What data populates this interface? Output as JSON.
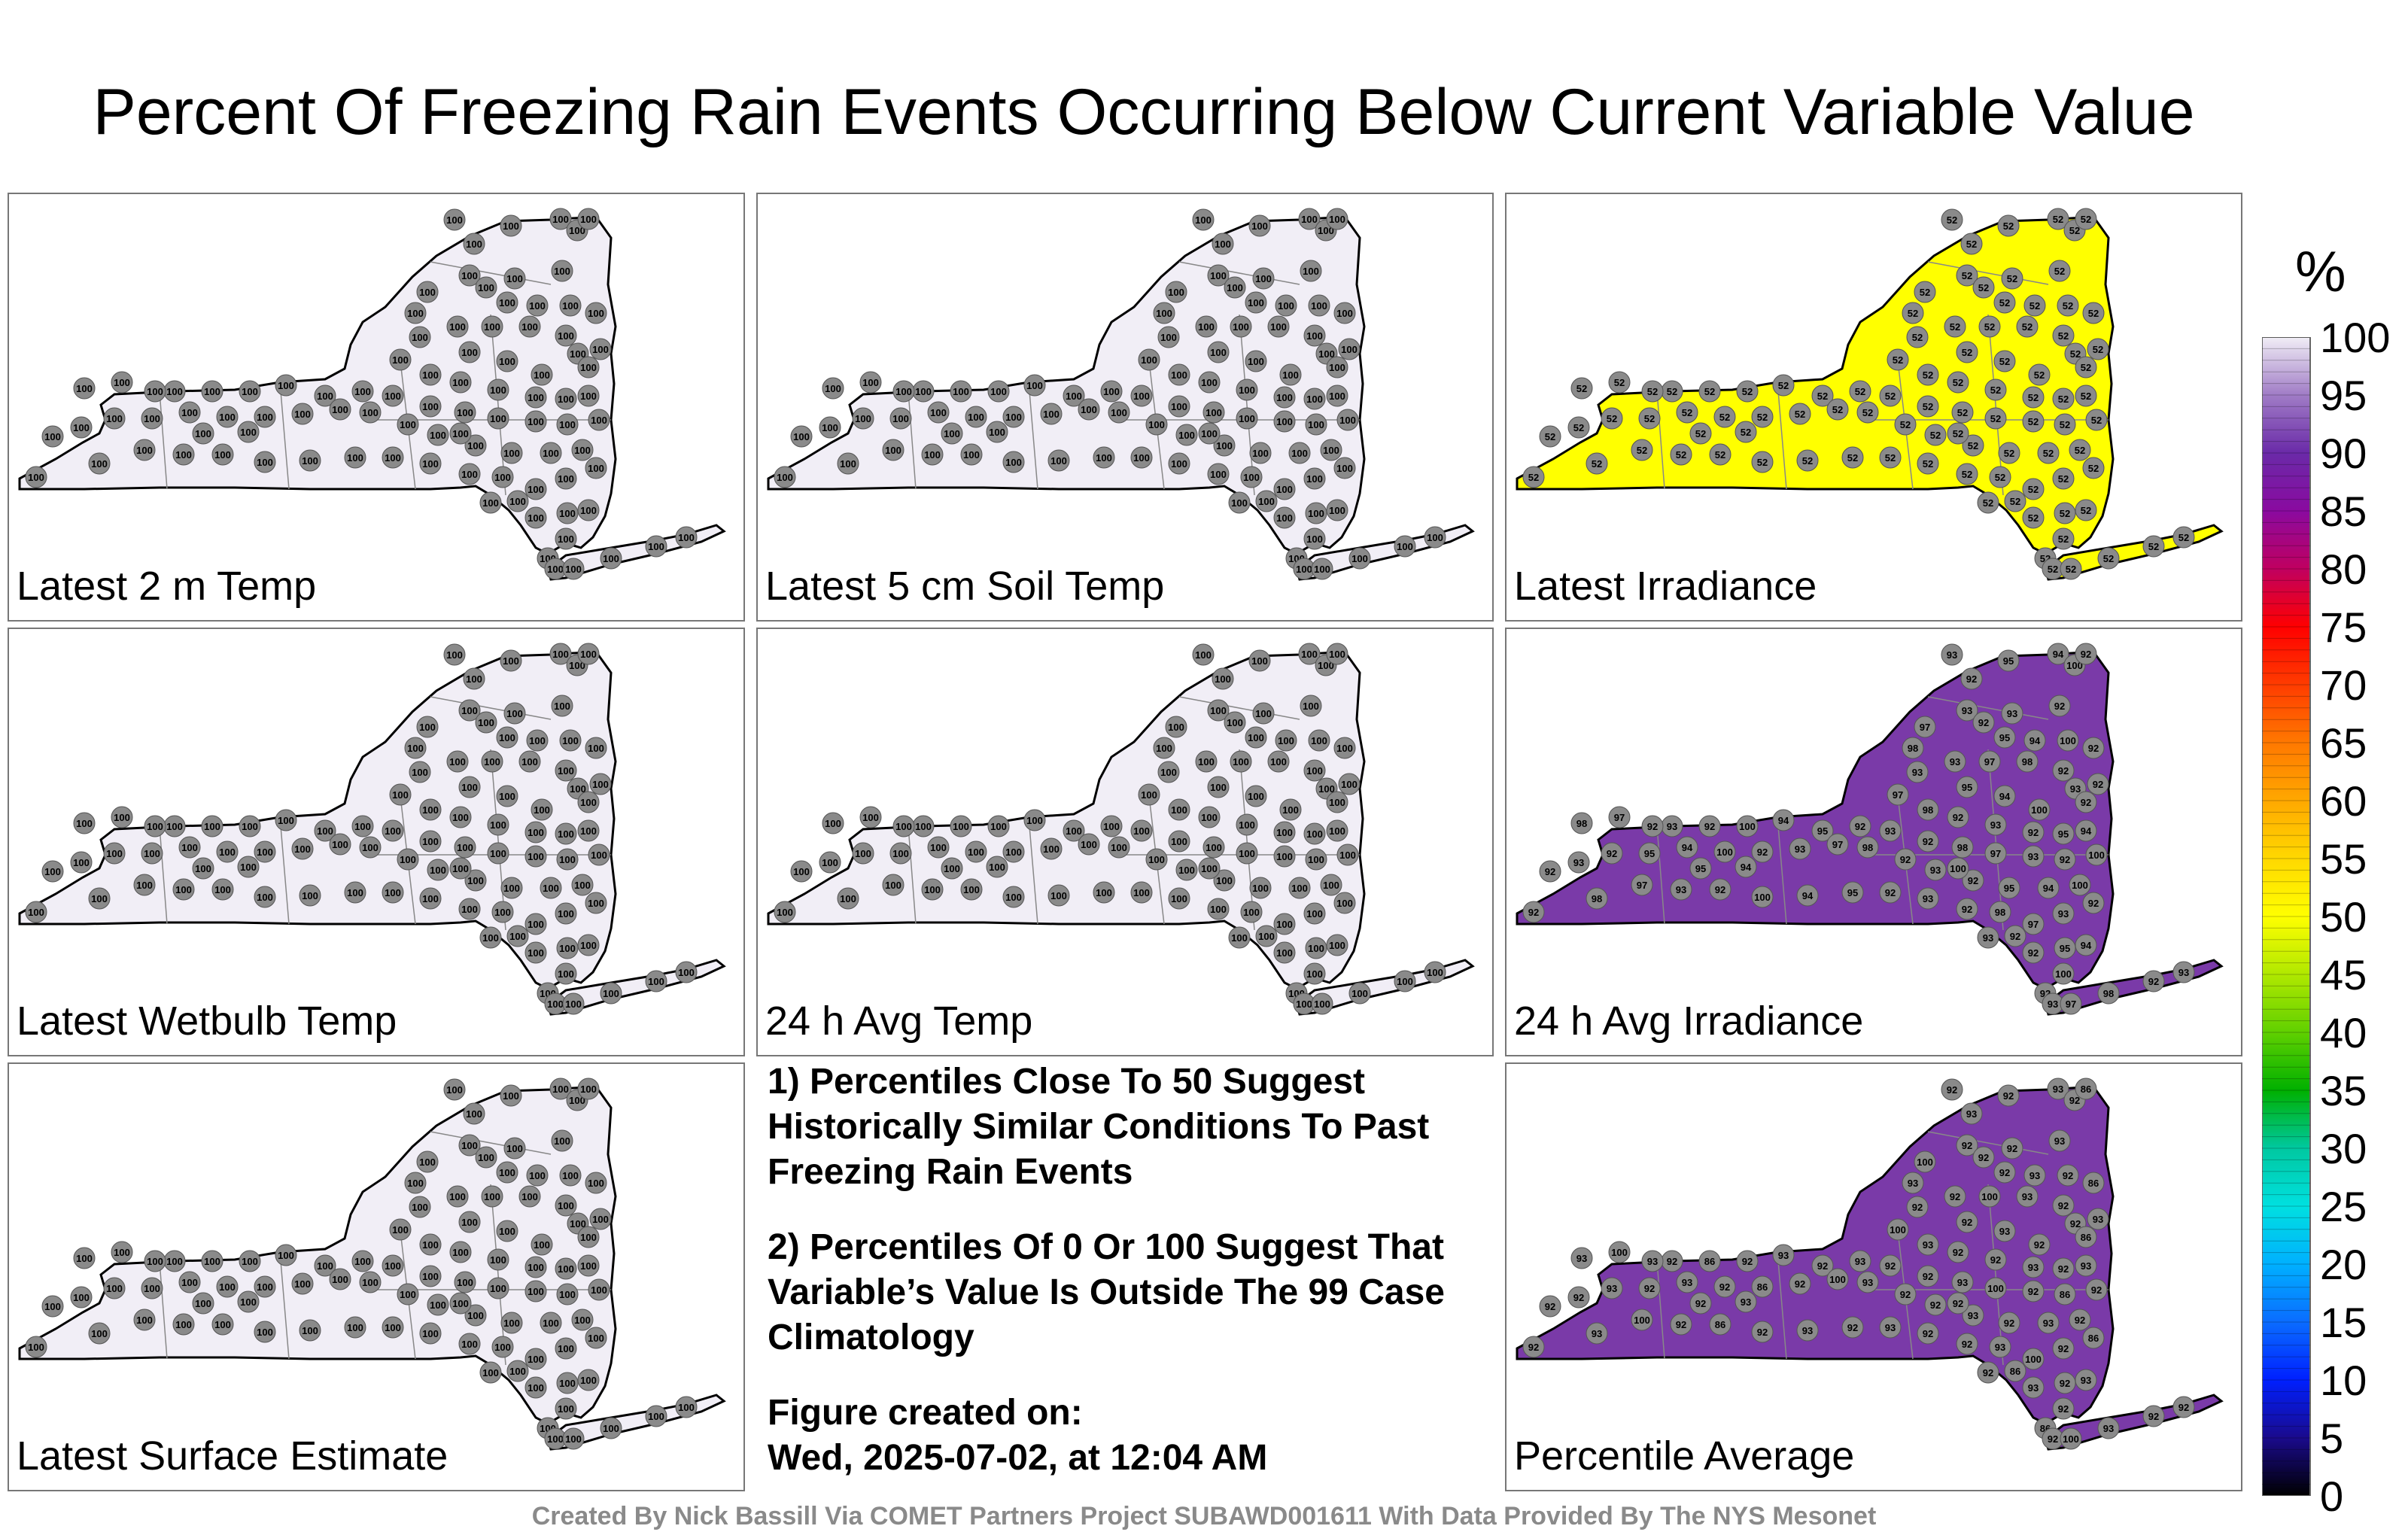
{
  "title": "Percent Of Freezing Rain Events Occurring Below Current Variable Value",
  "panels": [
    {
      "label": "Latest 2 m Temp",
      "fill": "#f1eef6",
      "value_pattern": [
        100
      ]
    },
    {
      "label": "Latest 5 cm Soil Temp",
      "fill": "#f1eef6",
      "value_pattern": [
        100
      ]
    },
    {
      "label": "Latest Irradiance",
      "fill": "#ffff00",
      "value_pattern": [
        52
      ]
    },
    {
      "label": "Latest Wetbulb Temp",
      "fill": "#f1eef6",
      "value_pattern": [
        100
      ]
    },
    {
      "label": "24 h Avg Temp",
      "fill": "#f1eef6",
      "value_pattern": [
        100
      ]
    },
    {
      "label": "24 h Avg Irradiance",
      "fill": "#7a3aa8",
      "value_pattern": [
        93,
        92,
        95,
        94,
        100,
        92,
        93,
        97,
        98,
        92
      ]
    },
    {
      "label": "Latest Surface Estimate",
      "fill": "#f1eef6",
      "value_pattern": [
        100
      ]
    },
    {
      "label": "Percentile Average",
      "fill": "#7a3aa8",
      "value_pattern": [
        92,
        93,
        92,
        93,
        92,
        86,
        92,
        100,
        93,
        92
      ]
    }
  ],
  "notes": {
    "note1": "1) Percentiles Close To 50 Suggest Historically Similar Conditions To Past Freezing Rain Events",
    "note2": "2) Percentiles Of 0 Or 100 Suggest That Variable’s Value Is Outside The 99 Case Climatology",
    "created_label": "Figure created on:",
    "created_date": "Wed, 2025-07-02, at 12:04 AM"
  },
  "credit": "Created By Nick Bassill Via COMET Partners Project SUBAWD001611 With Data Provided By The NYS Mesonet",
  "chart_data": {
    "type": "map",
    "colorbar": {
      "unit": "%",
      "min": 0,
      "max": 100,
      "ticks": [
        "100",
        "95",
        "90",
        "85",
        "80",
        "75",
        "70",
        "65",
        "60",
        "55",
        "50",
        "45",
        "40",
        "35",
        "30",
        "25",
        "20",
        "15",
        "10",
        "5",
        "0"
      ],
      "colors": [
        "#000000",
        "#1a0a8c",
        "#0020ff",
        "#0a6cff",
        "#00b0ff",
        "#00e0e0",
        "#00c8a0",
        "#00b000",
        "#60d000",
        "#b0e800",
        "#ffff00",
        "#ffd800",
        "#ffa800",
        "#ff7800",
        "#ff3c00",
        "#ff0000",
        "#c00060",
        "#8a0aa0",
        "#6a2aa8",
        "#a07cc6",
        "#f1eef6"
      ]
    }
  }
}
